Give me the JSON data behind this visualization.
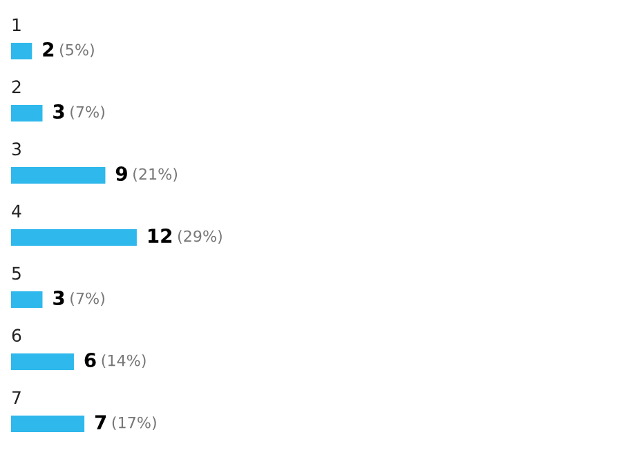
{
  "chart_data": {
    "type": "bar",
    "orientation": "horizontal",
    "categories": [
      "1",
      "2",
      "3",
      "4",
      "5",
      "6",
      "7"
    ],
    "values": [
      2,
      3,
      9,
      12,
      3,
      6,
      7
    ],
    "value_labels": [
      "2 (5%)",
      "3 (7%)",
      "9 (21%)",
      "12 (29%)",
      "3 (7%)",
      "6 (14%)",
      "7 (17%)"
    ],
    "color": "#2eb8ec"
  }
}
